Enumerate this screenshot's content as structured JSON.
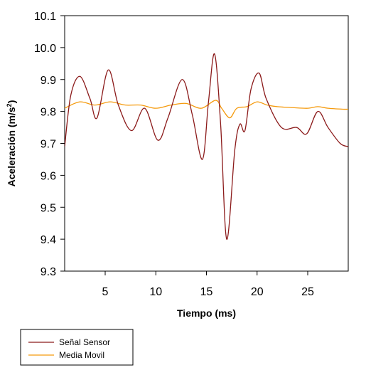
{
  "chart_data": {
    "type": "line",
    "xlabel": "Tiempo (ms)",
    "ylabel_main": "Aceleración (m/s",
    "ylabel_sup": "2",
    "ylabel_tail": ")",
    "xlim": [
      1,
      29
    ],
    "ylim": [
      9.3,
      10.1
    ],
    "xticks": [
      5,
      10,
      15,
      20,
      25
    ],
    "xtick_labels": [
      "5",
      "10",
      "15",
      "20",
      "25"
    ],
    "yticks": [
      9.3,
      9.4,
      9.5,
      9.6,
      9.7,
      9.8,
      9.9,
      10.0,
      10.1
    ],
    "ytick_labels": [
      "9.3",
      "9.4",
      "9.5",
      "9.6",
      "9.7",
      "9.8",
      "9.9",
      "10.0",
      "10.1"
    ],
    "legend_position": "bottom-left",
    "series": [
      {
        "name": "Señal Sensor",
        "color": "#8b1a1a",
        "x": [
          1,
          1.6,
          2.5,
          3.5,
          4.2,
          5.3,
          6.3,
          7.6,
          8.9,
          10.2,
          11.2,
          12.6,
          13.6,
          14.6,
          15.2,
          15.8,
          16.4,
          17.0,
          17.8,
          18.3,
          18.8,
          19.4,
          20.2,
          20.9,
          22.4,
          23.9,
          24.9,
          26.0,
          27.0,
          28.2,
          29.0
        ],
        "values": [
          9.69,
          9.85,
          9.91,
          9.84,
          9.78,
          9.93,
          9.82,
          9.74,
          9.81,
          9.71,
          9.78,
          9.9,
          9.79,
          9.65,
          9.83,
          9.98,
          9.76,
          9.4,
          9.68,
          9.76,
          9.74,
          9.87,
          9.92,
          9.84,
          9.75,
          9.75,
          9.73,
          9.8,
          9.75,
          9.7,
          9.69
        ]
      },
      {
        "name": "Media Movil",
        "color": "#f59a0c",
        "x": [
          1,
          2.5,
          4.0,
          5.5,
          7.0,
          8.5,
          10.0,
          11.5,
          13.0,
          14.5,
          15.9,
          16.5,
          17.3,
          18.0,
          19.0,
          20.0,
          21.0,
          22.0,
          23.5,
          25.0,
          26.0,
          27.0,
          28.5,
          29.0
        ],
        "values": [
          9.81,
          9.83,
          9.82,
          9.83,
          9.82,
          9.82,
          9.81,
          9.82,
          9.825,
          9.81,
          9.835,
          9.81,
          9.78,
          9.81,
          9.815,
          9.83,
          9.82,
          9.815,
          9.812,
          9.81,
          9.815,
          9.81,
          9.807,
          9.807
        ]
      }
    ]
  }
}
